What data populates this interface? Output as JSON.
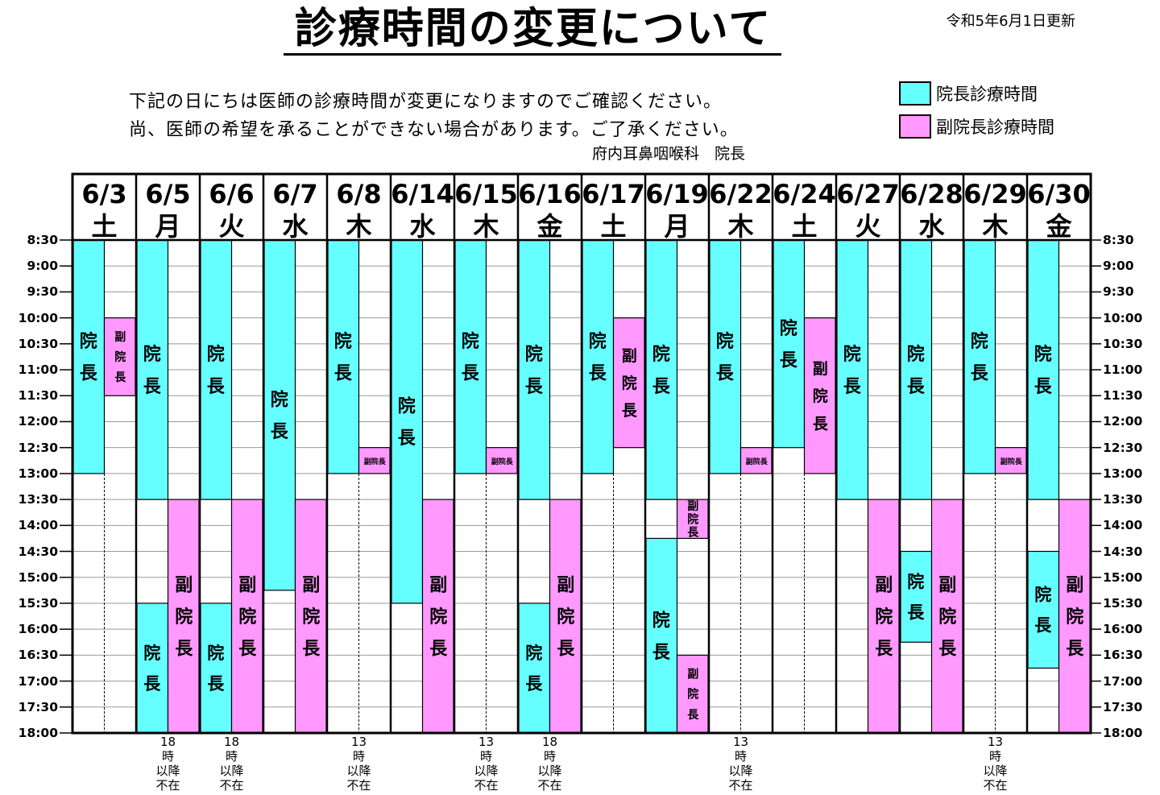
{
  "header": {
    "title": "診療時間の変更について",
    "updated": "令和5年6月1日更新",
    "notice_line1": "下記の日にちは医師の診療時間が変更になりますのでご確認ください。",
    "notice_line2": "尚、医師の希望を承ることができない場合があります。ご了承ください。",
    "signature": "府内耳鼻咽喉科　院長"
  },
  "legend": {
    "director": {
      "label": "院長診療時間",
      "color": "#66FFFF"
    },
    "vice_director": {
      "label": "副院長診療時間",
      "color": "#FF99FF"
    }
  },
  "colors": {
    "director": "#66FFFF",
    "vice_director": "#FF99FF",
    "line": "#000000",
    "grid": "#999999"
  },
  "time_labels": [
    "8:30",
    "9:00",
    "9:30",
    "10:00",
    "10:30",
    "11:00",
    "11:30",
    "12:00",
    "12:30",
    "13:00",
    "13:30",
    "14:00",
    "14:30",
    "15:00",
    "15:30",
    "16:00",
    "16:30",
    "17:00",
    "17:30",
    "18:00"
  ],
  "days": [
    {
      "date": "6/3",
      "weekday": "土",
      "director": [
        [
          "8:30",
          "13:00",
          "院長"
        ]
      ],
      "vice": [
        [
          "10:00",
          "11:30",
          "副院長"
        ]
      ],
      "note": ""
    },
    {
      "date": "6/5",
      "weekday": "月",
      "director": [
        [
          "8:30",
          "13:30",
          "院長"
        ],
        [
          "15:30",
          "18:00",
          "院長"
        ]
      ],
      "vice": [
        [
          "13:30",
          "18:00",
          "副院長"
        ]
      ],
      "note": "18\n時\n以降\n不在"
    },
    {
      "date": "6/6",
      "weekday": "火",
      "director": [
        [
          "8:30",
          "13:30",
          "院長"
        ],
        [
          "15:30",
          "18:00",
          "院長"
        ]
      ],
      "vice": [
        [
          "13:30",
          "18:00",
          "副院長"
        ]
      ],
      "note": "18\n時\n以降\n不在"
    },
    {
      "date": "6/7",
      "weekday": "水",
      "director": [
        [
          "8:30",
          "15:15",
          "院長"
        ]
      ],
      "vice": [
        [
          "13:30",
          "18:00",
          "副院長"
        ]
      ],
      "note": ""
    },
    {
      "date": "6/8",
      "weekday": "木",
      "director": [
        [
          "8:30",
          "13:00",
          "院長"
        ]
      ],
      "vice": [
        [
          "12:30",
          "13:00",
          "副院長"
        ]
      ],
      "note": "13\n時\n以降\n不在"
    },
    {
      "date": "6/14",
      "weekday": "水",
      "director": [
        [
          "8:30",
          "15:30",
          "院長"
        ]
      ],
      "vice": [
        [
          "13:30",
          "18:00",
          "副院長"
        ]
      ],
      "note": ""
    },
    {
      "date": "6/15",
      "weekday": "木",
      "director": [
        [
          "8:30",
          "13:00",
          "院長"
        ]
      ],
      "vice": [
        [
          "12:30",
          "13:00",
          "副院長"
        ]
      ],
      "note": "13\n時\n以降\n不在"
    },
    {
      "date": "6/16",
      "weekday": "金",
      "director": [
        [
          "8:30",
          "13:30",
          "院長"
        ],
        [
          "15:30",
          "18:00",
          "院長"
        ]
      ],
      "vice": [
        [
          "13:30",
          "18:00",
          "副院長"
        ]
      ],
      "note": "18\n時\n以降\n不在"
    },
    {
      "date": "6/17",
      "weekday": "土",
      "director": [
        [
          "8:30",
          "13:00",
          "院長"
        ]
      ],
      "vice": [
        [
          "10:00",
          "12:30",
          "副院長"
        ]
      ],
      "note": ""
    },
    {
      "date": "6/19",
      "weekday": "月",
      "director": [
        [
          "8:30",
          "13:30",
          "院長"
        ],
        [
          "14:15",
          "18:00",
          "院長"
        ]
      ],
      "vice": [
        [
          "13:30",
          "14:15",
          "副院長"
        ],
        [
          "16:30",
          "18:00",
          "副院長"
        ]
      ],
      "note": ""
    },
    {
      "date": "6/22",
      "weekday": "木",
      "director": [
        [
          "8:30",
          "13:00",
          "院長"
        ]
      ],
      "vice": [
        [
          "12:30",
          "13:00",
          "副院長"
        ]
      ],
      "note": "13\n時\n以降\n不在"
    },
    {
      "date": "6/24",
      "weekday": "土",
      "director": [
        [
          "8:30",
          "12:30",
          "院長"
        ]
      ],
      "vice": [
        [
          "10:00",
          "13:00",
          "副院長"
        ]
      ],
      "note": ""
    },
    {
      "date": "6/27",
      "weekday": "火",
      "director": [
        [
          "8:30",
          "13:30",
          "院長"
        ]
      ],
      "vice": [
        [
          "13:30",
          "18:00",
          "副院長"
        ]
      ],
      "note": ""
    },
    {
      "date": "6/28",
      "weekday": "水",
      "director": [
        [
          "8:30",
          "13:30",
          "院長"
        ],
        [
          "14:30",
          "16:15",
          "院長"
        ]
      ],
      "vice": [
        [
          "13:30",
          "18:00",
          "副院長"
        ]
      ],
      "note": ""
    },
    {
      "date": "6/29",
      "weekday": "木",
      "director": [
        [
          "8:30",
          "13:00",
          "院長"
        ]
      ],
      "vice": [
        [
          "12:30",
          "13:00",
          "副院長"
        ]
      ],
      "note": "13\n時\n以降\n不在"
    },
    {
      "date": "6/30",
      "weekday": "金",
      "director": [
        [
          "8:30",
          "13:30",
          "院長"
        ],
        [
          "14:30",
          "16:45",
          "院長"
        ]
      ],
      "vice": [
        [
          "13:30",
          "18:00",
          "副院長"
        ]
      ],
      "note": ""
    }
  ]
}
